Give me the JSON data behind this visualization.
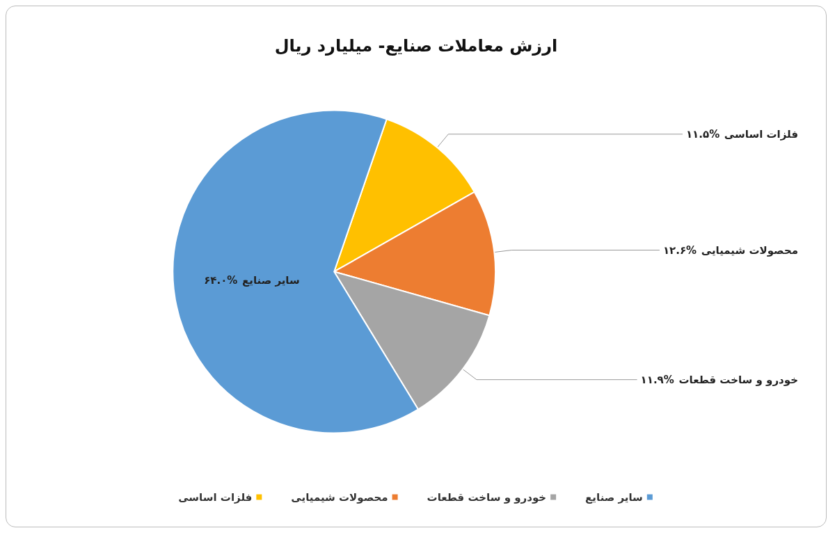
{
  "chart_data": {
    "type": "pie",
    "title": "ارزش معاملات صنایع- میلیارد ریال",
    "categories": [
      "فلزات اساسی",
      "محصولات شیمیایی",
      "خودرو و ساخت قطعات",
      "سایر صنایع"
    ],
    "values": [
      11.5,
      12.6,
      11.9,
      64.0
    ],
    "value_labels": [
      "۱۱.۵%",
      "۱۲.۶%",
      "۱۱.۹%",
      "۶۴.۰%"
    ],
    "colors": [
      "#ffc000",
      "#ed7d31",
      "#a5a5a5",
      "#5b9bd5"
    ],
    "legend": "bottom"
  }
}
